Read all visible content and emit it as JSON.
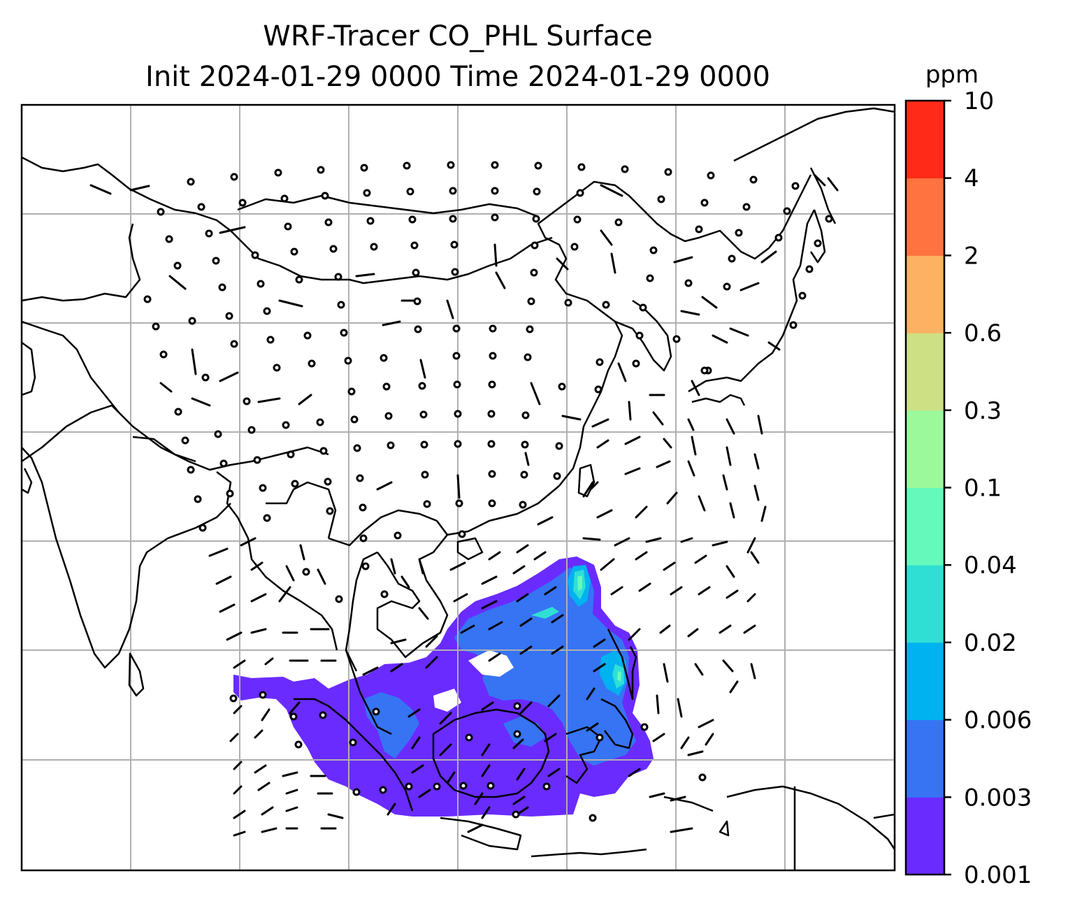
{
  "title": {
    "line1": "WRF-Tracer CO_PHL Surface",
    "line2": "Init 2024-01-29 0000 Time 2024-01-29 0000"
  },
  "colorbar": {
    "unit": "ppm",
    "levels": [
      "0.001",
      "0.003",
      "0.006",
      "0.02",
      "0.04",
      "0.1",
      "0.3",
      "0.6",
      "2",
      "4",
      "10"
    ],
    "colors": [
      "#6a2bff",
      "#3674f4",
      "#00b2ef",
      "#2fdfd4",
      "#65f9bc",
      "#9bf99b",
      "#cde184",
      "#fdb162",
      "#fe7340",
      "#ff2a17"
    ]
  },
  "map": {
    "region": "East / Southeast Asia",
    "gridlines": true,
    "features": [
      "coastlines",
      "country borders",
      "wind barbs",
      "CO tracer concentration"
    ]
  }
}
